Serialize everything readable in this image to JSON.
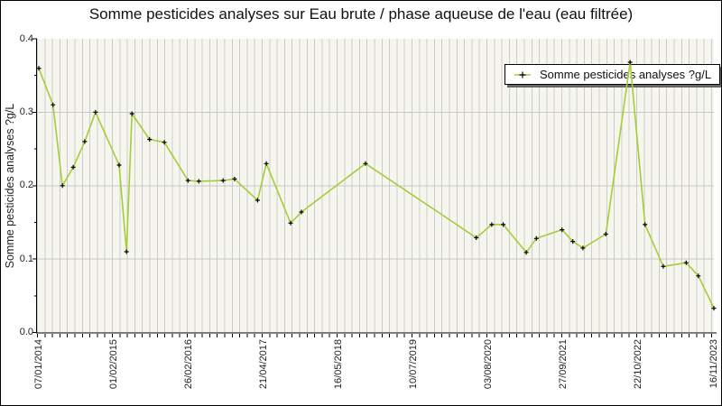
{
  "legend": {
    "label": "Somme pesticides analyses ?g/L",
    "position": "top-right"
  },
  "colors": {
    "line": "#a3cd39",
    "marker": "#000000",
    "plot_bg": "#f6f6ee",
    "v_grid": "#cccccc",
    "h_grid": "#c6c6c6",
    "axis": "#000000",
    "legend_bg": "#ffffff",
    "legend_border": "#000000",
    "legend_shadow": "#666666",
    "text": "#1a1a1a"
  },
  "chart_data": {
    "type": "line",
    "title": "Somme pesticides analyses sur Eau brute / phase aqueuse de l'eau (eau filtrée)",
    "ylabel": "Somme pesticides analyses ?g/L",
    "xlabel": "",
    "ylim": [
      0.0,
      0.4
    ],
    "y_ticks": [
      0.0,
      0.1,
      0.2,
      0.3,
      0.4
    ],
    "x_tick_labels": [
      "07/01/2014",
      "01/02/2015",
      "26/02/2016",
      "21/04/2017",
      "16/05/2018",
      "10/07/2019",
      "03/08/2020",
      "27/09/2021",
      "22/10/2022",
      "16/11/2023"
    ],
    "grid": "dense vertical minor gridlines, horizontal gridlines at labeled ticks",
    "legend_position": "top-right",
    "x_axis_note": "point x = fraction of the time axis from 07/01/2014 (0.0) to 16/11/2023 (1.0), values in ?g/L",
    "series": [
      {
        "name": "Somme pesticides analyses ?g/L",
        "color": "#a3cd39",
        "marker": "plus",
        "marker_color": "#000000",
        "points": [
          [
            0.0,
            0.36
          ],
          [
            0.021,
            0.31
          ],
          [
            0.035,
            0.2
          ],
          [
            0.051,
            0.225
          ],
          [
            0.068,
            0.26
          ],
          [
            0.084,
            0.3
          ],
          [
            0.119,
            0.228
          ],
          [
            0.13,
            0.11
          ],
          [
            0.138,
            0.298
          ],
          [
            0.164,
            0.263
          ],
          [
            0.186,
            0.259
          ],
          [
            0.221,
            0.207
          ],
          [
            0.237,
            0.206
          ],
          [
            0.273,
            0.207
          ],
          [
            0.29,
            0.209
          ],
          [
            0.324,
            0.18
          ],
          [
            0.337,
            0.23
          ],
          [
            0.373,
            0.149
          ],
          [
            0.389,
            0.164
          ],
          [
            0.484,
            0.23
          ],
          [
            0.648,
            0.129
          ],
          [
            0.671,
            0.147
          ],
          [
            0.688,
            0.147
          ],
          [
            0.722,
            0.109
          ],
          [
            0.737,
            0.128
          ],
          [
            0.775,
            0.14
          ],
          [
            0.791,
            0.124
          ],
          [
            0.806,
            0.115
          ],
          [
            0.84,
            0.134
          ],
          [
            0.876,
            0.368
          ],
          [
            0.898,
            0.147
          ],
          [
            0.925,
            0.09
          ],
          [
            0.959,
            0.095
          ],
          [
            0.977,
            0.077
          ],
          [
            1.0,
            0.033
          ]
        ]
      }
    ]
  }
}
